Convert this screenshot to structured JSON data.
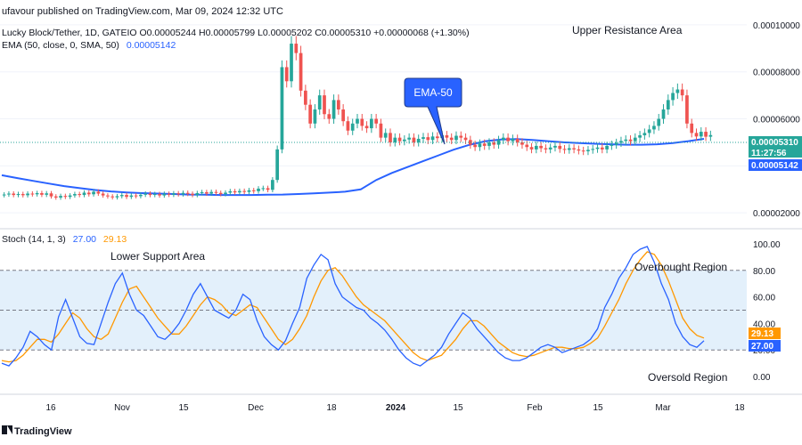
{
  "header": {
    "published": "ufavour published on TradingView.com, Mar 09, 2024 12:32 UTC",
    "symbol_line": "Lucky Block/Tether, 1D, GATEIO  O0.00005244  H0.00005799  L0.00005202  C0.00005310  +0.00000068 (+1.30%)",
    "ema_line_label": "EMA (50, close, 0, SMA, 50)",
    "ema_line_value": "0.00005142",
    "stoch_label": "Stoch (14, 1, 3)",
    "stoch_k_value": "27.00",
    "stoch_d_value": "29.13"
  },
  "annotations": {
    "upper_resistance": "Upper Resistance Area",
    "lower_support": "Lower Support Area",
    "overbought": "Overbought Region",
    "oversold": "Oversold Region",
    "ema_callout": "EMA-50"
  },
  "footer": {
    "brand": "TradingView"
  },
  "price_badges": {
    "last_price": "0.00005310",
    "countdown": "11:27:56",
    "ema_value": "0.00005142"
  },
  "stoch_badges": {
    "d_value": "29.13",
    "k_value": "27.00"
  },
  "colors": {
    "bull": "#26a69a",
    "bear": "#ef5350",
    "ema": "#2962ff",
    "stoch_k": "#2962ff",
    "stoch_d": "#ff9800",
    "band_fill": "#e3f0fb",
    "callout_fill": "#2962ff"
  },
  "chart_data": [
    {
      "type": "candlestick",
      "series": [
        {
          "name": "Lucky Block/Tether",
          "close": [
            2.78e-05,
            2.82e-05,
            2.76e-05,
            2.8e-05,
            2.75e-05,
            2.82e-05,
            2.79e-05,
            2.84e-05,
            2.77e-05,
            2.83e-05,
            2.7e-05,
            2.65e-05,
            2.72e-05,
            2.68e-05,
            2.74e-05,
            2.8e-05,
            2.76e-05,
            2.86e-05,
            2.79e-05,
            2.9e-05,
            2.82e-05,
            2.74e-05,
            2.7e-05,
            2.66e-05,
            2.71e-05,
            2.76e-05,
            2.68e-05,
            2.74e-05,
            2.71e-05,
            2.77e-05,
            2.82e-05,
            2.76e-05,
            2.8e-05,
            2.74e-05,
            2.81e-05,
            2.77e-05,
            2.83e-05,
            2.79e-05,
            2.85e-05,
            2.81e-05,
            2.76e-05,
            2.84e-05,
            2.88e-05,
            2.82e-05,
            2.89e-05,
            2.85e-05,
            2.8e-05,
            2.86e-05,
            2.92e-05,
            2.87e-05,
            2.93e-05,
            2.89e-05,
            2.96e-05,
            2.92e-05,
            3.03e-05,
            3.05e-05,
            2.98e-05,
            3.4e-05,
            4.7e-05,
            8.2e-05,
            7.6e-05,
            9.2e-05,
            8.8e-05,
            7.2e-05,
            6.6e-05,
            5.8e-05,
            6.4e-05,
            7e-05,
            6.2e-05,
            6e-05,
            6.8e-05,
            6.4e-05,
            5.9e-05,
            5.5e-05,
            5.8e-05,
            6e-05,
            5.7e-05,
            5.6e-05,
            6e-05,
            5.8e-05,
            5.2e-05,
            5.4e-05,
            5e-05,
            5.2e-05,
            5.05e-05,
            5.12e-05,
            5.2e-05,
            5e-05,
            5.15e-05,
            5.22e-05,
            5.1e-05,
            5.25e-05,
            5.18e-05,
            5.3e-05,
            5.2e-05,
            5.1e-05,
            5.28e-05,
            5.2e-05,
            5.1e-05,
            4.9e-05,
            4.8e-05,
            4.95e-05,
            4.85e-05,
            5e-05,
            4.9e-05,
            5.1e-05,
            5.2e-05,
            5.05e-05,
            5.15e-05,
            5e-05,
            4.9e-05,
            4.8e-05,
            4.7e-05,
            4.85e-05,
            4.75e-05,
            4.7e-05,
            4.78e-05,
            4.85e-05,
            4.72e-05,
            4.68e-05,
            4.75e-05,
            4.7e-05,
            4.65e-05,
            4.62e-05,
            4.68e-05,
            4.72e-05,
            4.78e-05,
            4.7e-05,
            4.85e-05,
            4.9e-05,
            4.98e-05,
            5.06e-05,
            5.12e-05,
            5.05e-05,
            5.2e-05,
            5.3e-05,
            5.4e-05,
            5.55e-05,
            5.7e-05,
            6e-05,
            6.4e-05,
            6.8e-05,
            7.1e-05,
            7.25e-05,
            7e-05,
            5.8e-05,
            5.4e-05,
            5.25e-05,
            5.45e-05,
            5.24e-05,
            5.31e-05
          ]
        }
      ],
      "ema50": [
        3.6e-05,
        3.48e-05,
        3.36e-05,
        3.25e-05,
        3.14e-05,
        3.05e-05,
        2.97e-05,
        2.91e-05,
        2.87e-05,
        2.84e-05,
        2.82e-05,
        2.8e-05,
        2.78e-05,
        2.77e-05,
        2.76e-05,
        2.76e-05,
        2.76e-05,
        2.77e-05,
        2.78e-05,
        2.8e-05,
        2.83e-05,
        2.86e-05,
        2.9e-05,
        3e-05,
        3.4e-05,
        3.7e-05,
        3.95e-05,
        4.2e-05,
        4.45e-05,
        4.7e-05,
        4.9e-05,
        5.05e-05,
        5.12e-05,
        5.14e-05,
        5.1e-05,
        5.05e-05,
        5e-05,
        4.97e-05,
        4.94e-05,
        4.92e-05,
        4.9e-05,
        4.9e-05,
        4.92e-05,
        4.97e-05,
        5.05e-05,
        5.15e-05
      ],
      "y_axis_ticks": [
        "0.00010000",
        "0.00008000",
        "0.00006000",
        "0.00004000",
        "0.00002000"
      ],
      "ylim": [
        1.4e-05,
        0.000103
      ],
      "x_axis_ticks": [
        "16",
        "Nov",
        "15",
        "Dec",
        "18",
        "2024",
        "15",
        "Feb",
        "15",
        "Mar",
        "18"
      ],
      "grid": true
    },
    {
      "type": "line",
      "series": [
        {
          "name": "Stoch",
          "values": [
            10,
            8,
            14,
            22,
            34,
            30,
            24,
            20,
            45,
            58,
            44,
            30,
            25,
            24,
            40,
            56,
            70,
            78,
            62,
            50,
            46,
            38,
            30,
            28,
            33,
            40,
            50,
            62,
            70,
            60,
            50,
            47,
            44,
            50,
            62,
            58,
            42,
            30,
            24,
            20,
            27,
            40,
            52,
            74,
            84,
            92,
            88,
            70,
            60,
            56,
            52,
            50,
            44,
            40,
            35,
            28,
            20,
            14,
            10,
            8,
            12,
            16,
            22,
            32,
            40,
            48,
            44,
            36,
            30,
            24,
            18,
            14,
            12,
            12,
            14,
            18,
            22,
            24,
            22,
            18,
            20,
            22,
            24,
            28,
            36,
            52,
            62,
            74,
            82,
            92,
            96,
            98,
            86,
            70,
            58,
            40,
            30,
            24,
            22,
            27
          ]
        },
        {
          "name": "",
          "values": [
            12,
            11,
            12,
            16,
            22,
            28,
            28,
            26,
            32,
            40,
            48,
            44,
            36,
            30,
            28,
            32,
            44,
            56,
            66,
            68,
            60,
            52,
            44,
            38,
            32,
            32,
            38,
            46,
            54,
            60,
            58,
            54,
            48,
            46,
            50,
            54,
            52,
            44,
            36,
            28,
            24,
            28,
            36,
            46,
            60,
            72,
            80,
            82,
            76,
            68,
            60,
            54,
            50,
            46,
            42,
            36,
            30,
            24,
            18,
            14,
            12,
            14,
            16,
            22,
            28,
            36,
            42,
            42,
            38,
            32,
            26,
            22,
            18,
            16,
            15,
            16,
            18,
            20,
            22,
            22,
            21,
            21,
            22,
            25,
            29,
            38,
            48,
            58,
            70,
            80,
            88,
            94,
            92,
            84,
            72,
            58,
            44,
            36,
            31,
            29
          ]
        }
      ],
      "y_axis_ticks": [
        "100.00",
        "80.00",
        "60.00",
        "40.00",
        "20.00",
        "0.00"
      ],
      "ylim": [
        0,
        100
      ],
      "levels": [
        80,
        50,
        20
      ],
      "x_axis_ticks": [
        "16",
        "Nov",
        "15",
        "Dec",
        "18",
        "2024",
        "15",
        "Feb",
        "15",
        "Mar",
        "18"
      ]
    }
  ]
}
